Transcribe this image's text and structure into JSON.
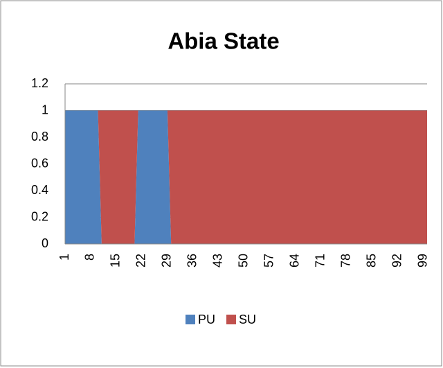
{
  "chart_data": {
    "type": "stacked_area",
    "title": "Abia State",
    "categories": [
      "1",
      null,
      null,
      null,
      null,
      null,
      null,
      "8",
      null,
      null,
      null,
      null,
      null,
      null,
      "15",
      null,
      null,
      null,
      null,
      null,
      null,
      "22",
      null,
      null,
      null,
      null,
      null,
      null,
      "29",
      null,
      null,
      null,
      null,
      null,
      null,
      "36",
      null,
      null,
      null,
      null,
      null,
      null,
      "43",
      null,
      null,
      null,
      null,
      null,
      null,
      "50",
      null,
      null,
      null,
      null,
      null,
      null,
      "57",
      null,
      null,
      null,
      null,
      null,
      null,
      "64",
      null,
      null,
      null,
      null,
      null,
      null,
      "71",
      null,
      null,
      null,
      null,
      null,
      null,
      "78",
      null,
      null,
      null,
      null,
      null,
      null,
      "85",
      null,
      null,
      null,
      null,
      null,
      null,
      "92",
      null,
      null,
      null,
      null,
      null,
      null,
      "99",
      null
    ],
    "series": [
      {
        "name": "PU",
        "color": "#4f81bd",
        "values": [
          1,
          1,
          1,
          1,
          1,
          1,
          1,
          1,
          1,
          1,
          0,
          0,
          0,
          0,
          0,
          0,
          0,
          0,
          0,
          0,
          1,
          1,
          1,
          1,
          1,
          1,
          1,
          1,
          1,
          0,
          0,
          0,
          0,
          0,
          0,
          0,
          0,
          0,
          0,
          0,
          0,
          0,
          0,
          0,
          0,
          0,
          0,
          0,
          0,
          0,
          0,
          0,
          0,
          0,
          0,
          0,
          0,
          0,
          0,
          0,
          0,
          0,
          0,
          0,
          0,
          0,
          0,
          0,
          0,
          0,
          0,
          0,
          0,
          0,
          0,
          0,
          0,
          0,
          0,
          0,
          0,
          0,
          0,
          0,
          0,
          0,
          0,
          0,
          0,
          0,
          0,
          0,
          0,
          0,
          0,
          0,
          0,
          0,
          0,
          0
        ]
      },
      {
        "name": "SU",
        "color": "#c0504d",
        "values": [
          0,
          0,
          0,
          0,
          0,
          0,
          0,
          0,
          0,
          0,
          1,
          1,
          1,
          1,
          1,
          1,
          1,
          1,
          1,
          1,
          0,
          0,
          0,
          0,
          0,
          0,
          0,
          0,
          0,
          1,
          1,
          1,
          1,
          1,
          1,
          1,
          1,
          1,
          1,
          1,
          1,
          1,
          1,
          1,
          1,
          1,
          1,
          1,
          1,
          1,
          1,
          1,
          1,
          1,
          1,
          1,
          1,
          1,
          1,
          1,
          1,
          1,
          1,
          1,
          1,
          1,
          1,
          1,
          1,
          1,
          1,
          1,
          1,
          1,
          1,
          1,
          1,
          1,
          1,
          1,
          1,
          1,
          1,
          1,
          1,
          1,
          1,
          1,
          1,
          1,
          1,
          1,
          1,
          1,
          1,
          1,
          1,
          1,
          1,
          1
        ]
      }
    ],
    "ylim": [
      0,
      1.2
    ],
    "yticks": [
      0,
      0.2,
      0.4,
      0.6,
      0.8,
      1,
      1.2
    ],
    "grid": true,
    "legend": "bottom"
  }
}
